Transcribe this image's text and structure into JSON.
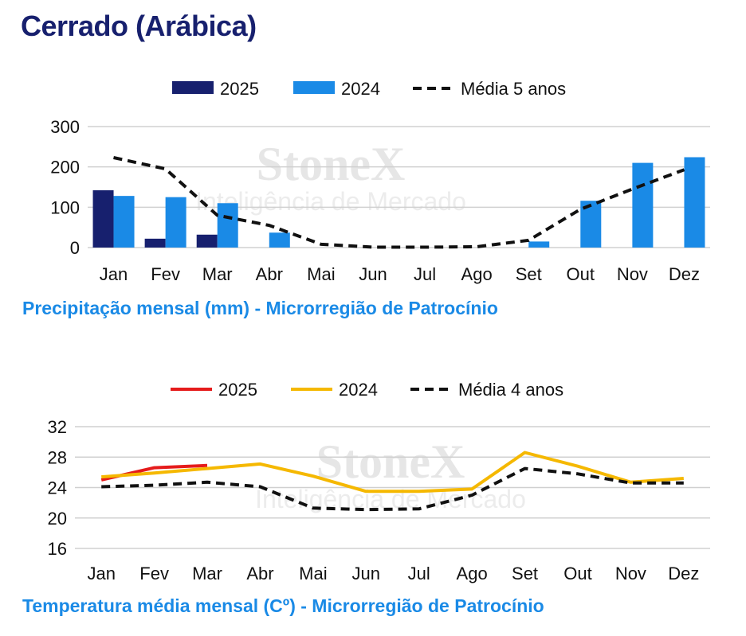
{
  "title": "Cerrado (Arábica)",
  "watermark": {
    "brand": "StoneX",
    "sub": "Inteligência de Mercado"
  },
  "chart_data": [
    {
      "type": "bar",
      "caption": "Precipitação mensal (mm) - Microrregião de Patrocínio",
      "categories": [
        "Jan",
        "Fev",
        "Mar",
        "Abr",
        "Mai",
        "Jun",
        "Jul",
        "Ago",
        "Set",
        "Out",
        "Nov",
        "Dez"
      ],
      "ylim": [
        0,
        300
      ],
      "yticks": [
        "0",
        "100",
        "200",
        "300"
      ],
      "grid": true,
      "legend_position": "top",
      "series": [
        {
          "name": "2025",
          "kind": "bar",
          "color": "#17206e",
          "values": [
            142,
            22,
            32,
            null,
            null,
            null,
            null,
            null,
            null,
            null,
            null,
            null
          ]
        },
        {
          "name": "2024",
          "kind": "bar",
          "color": "#1a8ae6",
          "values": [
            128,
            125,
            110,
            37,
            null,
            null,
            null,
            null,
            15,
            116,
            210,
            224
          ]
        },
        {
          "name": "Média 5 anos",
          "kind": "dashed-line",
          "color": "#111111",
          "values": [
            223,
            195,
            80,
            55,
            8,
            1,
            1,
            2,
            18,
            95,
            145,
            193
          ]
        }
      ]
    },
    {
      "type": "line",
      "caption": "Temperatura média mensal (Cº) - Microrregião de Patrocínio",
      "categories": [
        "Jan",
        "Fev",
        "Mar",
        "Abr",
        "Mai",
        "Jun",
        "Jul",
        "Ago",
        "Set",
        "Out",
        "Nov",
        "Dez"
      ],
      "ylim": [
        16,
        32
      ],
      "yticks": [
        "16",
        "20",
        "24",
        "28",
        "32"
      ],
      "grid": true,
      "legend_position": "top",
      "series": [
        {
          "name": "2025",
          "kind": "line",
          "color": "#e51b1b",
          "values": [
            25.0,
            26.6,
            26.9,
            null,
            null,
            null,
            null,
            null,
            null,
            null,
            null,
            null
          ]
        },
        {
          "name": "2024",
          "kind": "line",
          "color": "#f5b800",
          "values": [
            25.4,
            25.9,
            26.5,
            27.1,
            25.5,
            23.5,
            23.5,
            23.8,
            28.6,
            26.8,
            24.7,
            25.2
          ]
        },
        {
          "name": "Média 4 anos",
          "kind": "dashed-line",
          "color": "#111111",
          "values": [
            24.1,
            24.3,
            24.7,
            24.1,
            21.3,
            21.1,
            21.2,
            23.0,
            26.5,
            25.8,
            24.6,
            24.6
          ]
        }
      ]
    }
  ]
}
